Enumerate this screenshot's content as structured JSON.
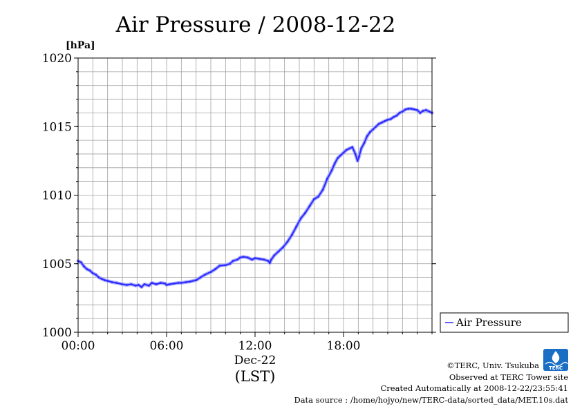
{
  "chart_data": {
    "type": "line",
    "title": "Air Pressure / 2008-12-22",
    "unit_label": "[hPa]",
    "ylim": [
      1000,
      1020
    ],
    "y_ticks": [
      1000,
      1005,
      1010,
      1015,
      1020
    ],
    "y_minor_step": 1,
    "grid": true,
    "xlim": [
      0,
      24
    ],
    "x_ticks": [
      {
        "hour": 0,
        "label": "00:00"
      },
      {
        "hour": 6,
        "label": "06:00"
      },
      {
        "hour": 12,
        "label": "12:00"
      },
      {
        "hour": 18,
        "label": "18:00"
      }
    ],
    "x_sublabel": "Dec-22",
    "x_unit_label": "(LST)",
    "legend_position": "right",
    "series": [
      {
        "name": "Air Pressure",
        "color": "#2b2bff",
        "x": [
          0.0,
          0.2,
          0.4,
          0.6,
          0.8,
          1.0,
          1.2,
          1.4,
          1.6,
          1.8,
          2.0,
          2.3,
          2.6,
          3.0,
          3.3,
          3.6,
          3.9,
          4.1,
          4.3,
          4.5,
          4.8,
          5.0,
          5.3,
          5.6,
          5.9,
          6.0,
          6.2,
          6.5,
          6.8,
          7.0,
          7.3,
          7.6,
          8.0,
          8.3,
          8.6,
          9.0,
          9.3,
          9.6,
          10.0,
          10.3,
          10.5,
          10.8,
          11.0,
          11.2,
          11.5,
          11.8,
          12.0,
          12.3,
          12.6,
          12.9,
          13.0,
          13.1,
          13.3,
          13.6,
          13.9,
          14.2,
          14.5,
          14.8,
          15.1,
          15.4,
          15.7,
          16.0,
          16.3,
          16.6,
          16.9,
          17.2,
          17.4,
          17.6,
          17.8,
          18.0,
          18.2,
          18.4,
          18.6,
          18.8,
          18.95,
          19.05,
          19.2,
          19.4,
          19.6,
          19.8,
          20.0,
          20.2,
          20.4,
          20.6,
          20.8,
          21.0,
          21.2,
          21.4,
          21.6,
          21.8,
          22.0,
          22.2,
          22.4,
          22.6,
          22.8,
          23.0,
          23.2,
          23.4,
          23.6,
          23.8,
          24.0
        ],
        "y": [
          1005.2,
          1005.1,
          1004.8,
          1004.6,
          1004.5,
          1004.3,
          1004.2,
          1004.0,
          1003.9,
          1003.8,
          1003.75,
          1003.65,
          1003.6,
          1003.5,
          1003.45,
          1003.5,
          1003.4,
          1003.45,
          1003.3,
          1003.5,
          1003.4,
          1003.6,
          1003.5,
          1003.6,
          1003.55,
          1003.45,
          1003.5,
          1003.55,
          1003.6,
          1003.6,
          1003.65,
          1003.7,
          1003.8,
          1004.0,
          1004.2,
          1004.4,
          1004.6,
          1004.85,
          1004.9,
          1005.0,
          1005.2,
          1005.3,
          1005.45,
          1005.5,
          1005.45,
          1005.3,
          1005.4,
          1005.35,
          1005.3,
          1005.2,
          1005.05,
          1005.3,
          1005.6,
          1005.9,
          1006.2,
          1006.6,
          1007.1,
          1007.7,
          1008.3,
          1008.7,
          1009.2,
          1009.7,
          1009.9,
          1010.4,
          1011.2,
          1011.8,
          1012.3,
          1012.7,
          1012.9,
          1013.1,
          1013.3,
          1013.4,
          1013.5,
          1013.0,
          1012.5,
          1012.8,
          1013.4,
          1013.8,
          1014.3,
          1014.6,
          1014.8,
          1015.0,
          1015.2,
          1015.3,
          1015.4,
          1015.5,
          1015.55,
          1015.7,
          1015.8,
          1016.0,
          1016.1,
          1016.25,
          1016.3,
          1016.3,
          1016.25,
          1016.2,
          1016.0,
          1016.15,
          1016.2,
          1016.1,
          1016.0
        ]
      }
    ]
  },
  "footer": {
    "copyright": "©TERC, Univ. Tsukuba",
    "observed": "Observed at TERC Tower site",
    "created": "Created Automatically at 2008-12-22/23:55:41",
    "source": "Data source : /home/hojyo/new/TERC-data/sorted_data/MET.10s.dat"
  },
  "logo": {
    "text": "TERC",
    "color": "#1a6fc4"
  }
}
